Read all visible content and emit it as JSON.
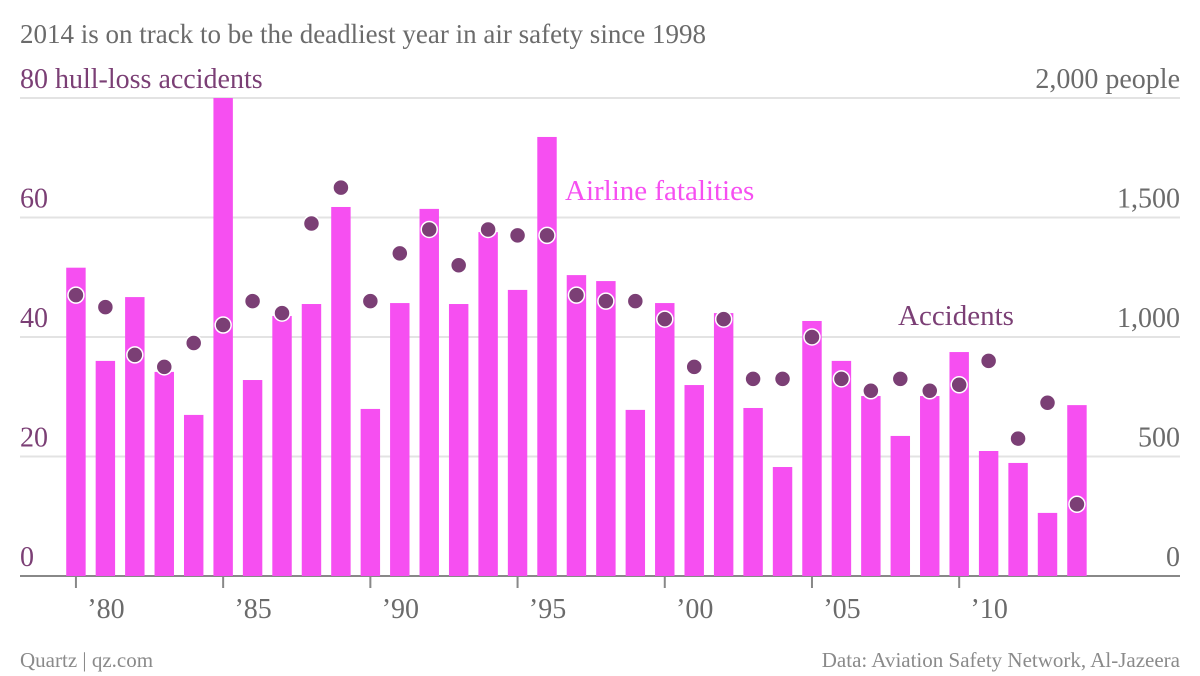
{
  "chart_data": {
    "type": "bar_dot",
    "title": "2014 is on track to be the deadliest year in air safety since 1998",
    "source": "Data: Aviation Safety Network, Al-Jazeera",
    "credit": "Quartz | qz.com",
    "x": [
      1980,
      1981,
      1982,
      1983,
      1984,
      1985,
      1986,
      1987,
      1988,
      1989,
      1990,
      1991,
      1992,
      1993,
      1994,
      1995,
      1996,
      1997,
      1998,
      1999,
      2000,
      2001,
      2002,
      2003,
      2004,
      2005,
      2006,
      2007,
      2008,
      2009,
      2010,
      2011,
      2012,
      2013,
      2014
    ],
    "xlim": [
      1978.1,
      2017.5
    ],
    "xticks": [
      {
        "value": 1980,
        "label": "’80"
      },
      {
        "value": 1985,
        "label": "’85"
      },
      {
        "value": 1990,
        "label": "’90"
      },
      {
        "value": 1995,
        "label": "’95"
      },
      {
        "value": 2000,
        "label": "’00"
      },
      {
        "value": 2005,
        "label": "’05"
      },
      {
        "value": 2010,
        "label": "’10"
      }
    ],
    "ylim": [
      0,
      80
    ],
    "yticks": [
      0,
      20,
      40,
      60,
      {
        "value": 80,
        "label": "80 hull-loss accidents"
      }
    ],
    "y2lim": [
      0,
      2000
    ],
    "y2ticks": [
      0,
      500,
      {
        "value": 1000,
        "label": "1,000"
      },
      {
        "value": 1500,
        "label": "1,500"
      },
      {
        "value": 2000,
        "label": "2,000 people"
      }
    ],
    "grid": true,
    "series": [
      {
        "name": "Airline fatalities",
        "color": "#f64ff1",
        "axis": "y2",
        "values": [
          1290,
          900,
          1167,
          854,
          674,
          2000,
          820,
          1088,
          1138,
          1544,
          699,
          1142,
          1536,
          1138,
          1439,
          1197,
          1837,
          1259,
          1234,
          695,
          1142,
          799,
          1100,
          703,
          456,
          1067,
          900,
          753,
          586,
          753,
          937,
          523,
          473,
          264,
          715
        ]
      },
      {
        "name": "Accidents",
        "color": "#7b3f75",
        "axis": "y",
        "values": [
          47,
          45,
          37,
          35,
          39,
          42,
          46,
          44,
          59,
          65,
          46,
          54,
          58,
          52,
          58,
          57,
          57,
          47,
          46,
          46,
          43,
          35,
          43,
          33,
          33,
          40,
          33,
          31,
          33,
          31,
          32,
          36,
          23,
          29,
          12
        ]
      }
    ]
  }
}
